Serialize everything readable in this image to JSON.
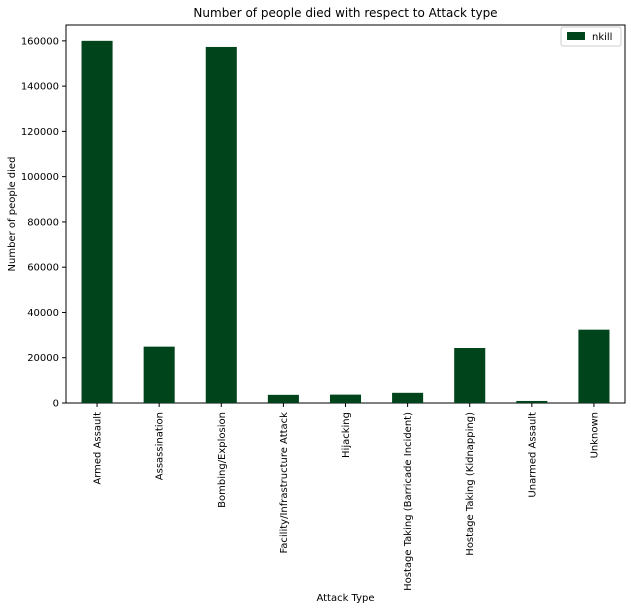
{
  "chart_data": {
    "type": "bar",
    "title": "Number of people died with respect to Attack type",
    "xlabel": "Attack Type",
    "ylabel": "Number of people died",
    "categories": [
      "Armed Assault",
      "Assassination",
      "Bombing/Explosion",
      "Facility/Infrastructure Attack",
      "Hijacking",
      "Hostage Taking (Barricade Incident)",
      "Hostage Taking (Kidnapping)",
      "Unarmed Assault",
      "Unknown"
    ],
    "series": [
      {
        "name": "nkill",
        "values": [
          160000,
          24900,
          157300,
          3600,
          3700,
          4500,
          24300,
          900,
          32400
        ],
        "color": "#00441b"
      }
    ],
    "ylim": [
      0,
      167000
    ],
    "yticks": [
      0,
      20000,
      40000,
      60000,
      80000,
      100000,
      120000,
      140000,
      160000
    ],
    "grid": false,
    "legend_position": "top-right"
  }
}
